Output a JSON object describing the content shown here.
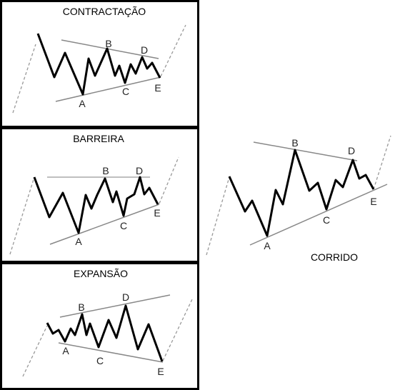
{
  "panels": {
    "contraction": {
      "title": "CONTRACTAÇÃO",
      "points": {
        "a": "A",
        "b": "B",
        "c": "C",
        "d": "D",
        "e": "E"
      }
    },
    "barrier": {
      "title": "BARREIRA",
      "points": {
        "a": "A",
        "b": "B",
        "c": "C",
        "d": "D",
        "e": "E"
      }
    },
    "expansion": {
      "title": "EXPANSÃO",
      "points": {
        "a": "A",
        "b": "B",
        "c": "C",
        "d": "D",
        "e": "E"
      }
    },
    "running": {
      "title": "CORRIDO",
      "points": {
        "a": "A",
        "b": "B",
        "c": "C",
        "d": "D",
        "e": "E"
      }
    }
  },
  "colors": {
    "wave": "#000000",
    "trendline": "#888888",
    "dashed": "#999999",
    "frame": "#000000"
  }
}
